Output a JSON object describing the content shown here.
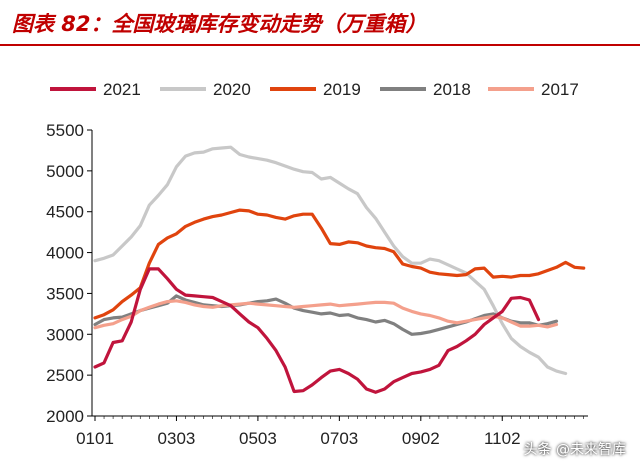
{
  "title": "图表 82：全国玻璃库存变动走势（万重箱）",
  "watermark": "头条 @未来智库",
  "chart_data": {
    "type": "line",
    "title": "图表 82：全国玻璃库存变动走势（万重箱）",
    "xlabel": "",
    "ylabel": "",
    "ylim": [
      2000,
      5500
    ],
    "yticks": [
      2000,
      2500,
      3000,
      3500,
      4000,
      4500,
      5000,
      5500
    ],
    "xlim": [
      1,
      52
    ],
    "xticks": [
      {
        "label": "0101",
        "week": 1
      },
      {
        "label": "0303",
        "week": 10
      },
      {
        "label": "0503",
        "week": 19
      },
      {
        "label": "0703",
        "week": 28
      },
      {
        "label": "0902",
        "week": 37
      },
      {
        "label": "1102",
        "week": 46
      }
    ],
    "grid": false,
    "legend_position": "top",
    "series": [
      {
        "name": "2021",
        "color": "#c0143c",
        "x_start": 1,
        "values": [
          2600,
          2650,
          2900,
          2920,
          3150,
          3550,
          3800,
          3800,
          3680,
          3550,
          3480,
          3470,
          3460,
          3450,
          3400,
          3350,
          3250,
          3150,
          3080,
          2950,
          2800,
          2600,
          2300,
          2310,
          2380,
          2470,
          2550,
          2570,
          2520,
          2450,
          2330,
          2290,
          2330,
          2420,
          2470,
          2520,
          2540,
          2570,
          2620,
          2800,
          2850,
          2920,
          3000,
          3120,
          3200,
          3280,
          3440,
          3450,
          3420,
          3180
        ]
      },
      {
        "name": "2020",
        "color": "#c8c8c8",
        "x_start": 1,
        "values": [
          3900,
          3930,
          3970,
          4080,
          4190,
          4330,
          4580,
          4700,
          4830,
          5050,
          5180,
          5220,
          5230,
          5270,
          5280,
          5290,
          5200,
          5170,
          5150,
          5130,
          5100,
          5060,
          5020,
          4990,
          4980,
          4900,
          4920,
          4850,
          4780,
          4720,
          4550,
          4420,
          4250,
          4080,
          3950,
          3870,
          3870,
          3920,
          3900,
          3850,
          3800,
          3750,
          3650,
          3550,
          3350,
          3130,
          2950,
          2850,
          2780,
          2720,
          2600,
          2550,
          2520
        ]
      },
      {
        "name": "2019",
        "color": "#e0440e",
        "x_start": 1,
        "values": [
          3200,
          3240,
          3300,
          3400,
          3480,
          3570,
          3870,
          4100,
          4180,
          4230,
          4320,
          4370,
          4410,
          4440,
          4460,
          4490,
          4520,
          4510,
          4470,
          4460,
          4430,
          4410,
          4450,
          4470,
          4470,
          4300,
          4110,
          4100,
          4130,
          4120,
          4080,
          4060,
          4050,
          4010,
          3860,
          3830,
          3810,
          3760,
          3740,
          3730,
          3720,
          3730,
          3800,
          3810,
          3700,
          3710,
          3700,
          3720,
          3720,
          3740,
          3780,
          3820,
          3880,
          3820,
          3810
        ]
      },
      {
        "name": "2018",
        "color": "#808080",
        "x_start": 1,
        "values": [
          3120,
          3180,
          3200,
          3210,
          3250,
          3290,
          3320,
          3350,
          3380,
          3470,
          3420,
          3390,
          3360,
          3350,
          3340,
          3350,
          3360,
          3380,
          3400,
          3410,
          3430,
          3380,
          3320,
          3290,
          3270,
          3250,
          3260,
          3230,
          3240,
          3200,
          3180,
          3150,
          3170,
          3130,
          3060,
          3000,
          3010,
          3030,
          3060,
          3090,
          3120,
          3150,
          3190,
          3230,
          3250,
          3200,
          3160,
          3140,
          3140,
          3110,
          3130,
          3160
        ]
      },
      {
        "name": "2017",
        "color": "#f4a08c",
        "x_start": 1,
        "values": [
          3080,
          3110,
          3130,
          3180,
          3220,
          3290,
          3330,
          3370,
          3400,
          3410,
          3390,
          3360,
          3340,
          3330,
          3350,
          3360,
          3370,
          3380,
          3370,
          3360,
          3350,
          3340,
          3330,
          3340,
          3350,
          3360,
          3370,
          3350,
          3360,
          3370,
          3380,
          3390,
          3390,
          3380,
          3320,
          3280,
          3250,
          3230,
          3200,
          3160,
          3140,
          3160,
          3180,
          3200,
          3220,
          3200,
          3150,
          3100,
          3100,
          3110,
          3090,
          3120
        ]
      }
    ]
  }
}
